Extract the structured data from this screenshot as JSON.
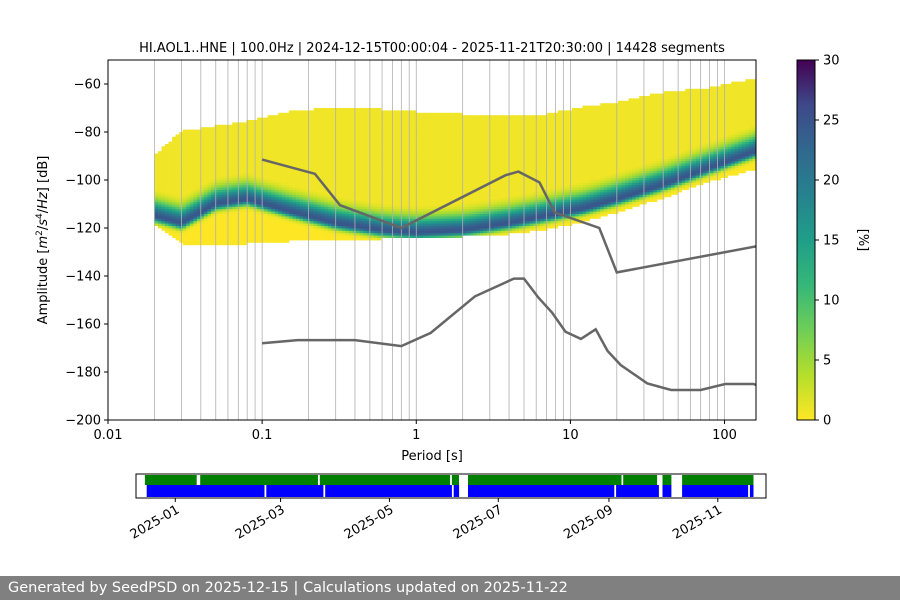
{
  "chart_data": [
    {
      "type": "heatmap",
      "title": "HI.AOL1..HNE | 100.0Hz | 2024-12-15T00:00:04 - 2025-11-21T20:30:00 | 14428 segments",
      "xlabel": "Period [s]",
      "ylabel": "Amplitude [m²/s⁴/Hz] [dB]",
      "xscale": "log",
      "xlim": [
        0.01,
        160
      ],
      "ylim": [
        -200,
        -50
      ],
      "x_ticks": [
        {
          "v": 0.01,
          "label": "0.01"
        },
        {
          "v": 0.1,
          "label": "0.1"
        },
        {
          "v": 1,
          "label": "1"
        },
        {
          "v": 10,
          "label": "10"
        },
        {
          "v": 100,
          "label": "100"
        }
      ],
      "y_ticks": [
        {
          "v": -60,
          "label": "−60"
        },
        {
          "v": -80,
          "label": "−80"
        },
        {
          "v": -100,
          "label": "−100"
        },
        {
          "v": -120,
          "label": "−120"
        },
        {
          "v": -140,
          "label": "−140"
        },
        {
          "v": -160,
          "label": "−160"
        },
        {
          "v": -180,
          "label": "−180"
        },
        {
          "v": -200,
          "label": "−200"
        }
      ],
      "grid": "vertical at log minor and major periods",
      "colorbar": {
        "label": "[%]",
        "range": [
          0,
          30
        ],
        "ticks": [
          "0",
          "5",
          "10",
          "15",
          "20",
          "25",
          "30"
        ],
        "colormap": "viridis reversed"
      },
      "psd_distribution": {
        "period": [
          0.02,
          0.03,
          0.05,
          0.08,
          0.15,
          0.3,
          0.6,
          1,
          2,
          4,
          7,
          12,
          20,
          40,
          80,
          160
        ],
        "mode_db": [
          -115,
          -118,
          -110,
          -108,
          -113,
          -118,
          -121,
          -122,
          -121,
          -118,
          -115,
          -112,
          -108,
          -102,
          -95,
          -88
        ],
        "lower_db": [
          -118,
          -126,
          -127,
          -126,
          -125,
          -125,
          -124,
          -124,
          -123,
          -122,
          -120,
          -117,
          -113,
          -107,
          -100,
          -95
        ],
        "upper_db": [
          -90,
          -80,
          -78,
          -76,
          -72,
          -70,
          -71,
          -72,
          -73,
          -74,
          -73,
          -70,
          -68,
          -64,
          -62,
          -58
        ]
      },
      "series": [
        {
          "x": [
            0.1,
            0.22,
            0.32,
            0.8,
            3.8,
            4.6,
            6.3,
            7.9,
            15.4,
            20,
            200
          ],
          "y": [
            -91.5,
            -97.4,
            -110.5,
            -120,
            -98,
            -96.5,
            -101,
            -113.5,
            -120,
            -138.5,
            -126.5
          ]
        },
        {
          "x": [
            0.1,
            0.17,
            0.4,
            0.8,
            1.24,
            2.4,
            4.3,
            5,
            6.2,
            7.6,
            9.3,
            11.7,
            14.6,
            17.4,
            21.2,
            31.6,
            45,
            70,
            101,
            154,
            200
          ],
          "y": [
            -168,
            -166.7,
            -166.7,
            -169.2,
            -163.7,
            -148.5,
            -141.1,
            -141.1,
            -149,
            -155.2,
            -163.2,
            -166.2,
            -162.2,
            -171.2,
            -177.1,
            -184.8,
            -187.5,
            -187.5,
            -185,
            -185,
            -187.5
          ]
        }
      ],
      "line_color": "#666666"
    },
    {
      "type": "timeline",
      "date_range": [
        "2024-12-10",
        "2025-11-28"
      ],
      "x_ticks": [
        "2025-01",
        "2025-03",
        "2025-05",
        "2025-07",
        "2025-09",
        "2025-11"
      ],
      "green_coverage": [
        [
          "2024-12-15",
          "2025-01-13"
        ],
        [
          "2025-01-15",
          "2025-03-22"
        ],
        [
          "2025-03-23",
          "2025-06-04"
        ],
        [
          "2025-06-05",
          "2025-06-09"
        ],
        [
          "2025-06-14",
          "2025-09-08"
        ],
        [
          "2025-09-09",
          "2025-09-28"
        ],
        [
          "2025-10-01",
          "2025-10-06"
        ],
        [
          "2025-10-12",
          "2025-11-21"
        ]
      ],
      "blue_coverage": [
        [
          "2024-12-16",
          "2025-02-20"
        ],
        [
          "2025-02-21",
          "2025-03-25"
        ],
        [
          "2025-03-26",
          "2025-06-05"
        ],
        [
          "2025-06-06",
          "2025-06-09"
        ],
        [
          "2025-06-14",
          "2025-09-04"
        ],
        [
          "2025-09-05",
          "2025-09-29"
        ],
        [
          "2025-10-01",
          "2025-10-06"
        ],
        [
          "2025-10-12",
          "2025-11-18"
        ],
        [
          "2025-11-19",
          "2025-11-21"
        ]
      ],
      "green_color": "#008000",
      "blue_color": "#0000ff"
    }
  ],
  "footer": {
    "text": "Generated by SeedPSD on 2025-12-15 | Calculations updated on 2025-11-22"
  }
}
